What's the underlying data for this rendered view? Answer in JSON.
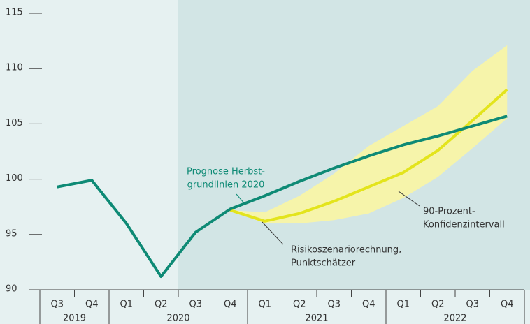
{
  "chart_data": {
    "type": "line",
    "categories": [
      "Q3",
      "Q4",
      "Q1",
      "Q2",
      "Q3",
      "Q4",
      "Q1",
      "Q2",
      "Q3",
      "Q4",
      "Q1",
      "Q2",
      "Q3",
      "Q4"
    ],
    "category_groups": [
      "2019",
      "2019",
      "2020",
      "2020",
      "2020",
      "2020",
      "2021",
      "2021",
      "2021",
      "2021",
      "2022",
      "2022",
      "2022",
      "2022"
    ],
    "series": [
      {
        "color": "#0e8a75",
        "values": [
          99.3,
          99.9,
          96.0,
          91.2,
          95.2,
          97.3,
          98.5,
          99.8,
          101.0,
          102.1,
          103.1,
          103.9,
          104.8,
          105.7
        ]
      },
      {
        "color": "#e3e41c",
        "values": [
          null,
          null,
          null,
          null,
          null,
          97.2,
          96.2,
          96.9,
          98.0,
          99.3,
          100.6,
          102.6,
          105.3,
          108.1
        ]
      }
    ],
    "band": {
      "color": "#f6f4aa",
      "lower": [
        null,
        null,
        null,
        null,
        null,
        97.2,
        96.0,
        96.0,
        96.3,
        96.9,
        98.3,
        100.2,
        102.8,
        105.5
      ],
      "upper": [
        null,
        null,
        null,
        null,
        null,
        97.2,
        97.0,
        98.5,
        100.5,
        103.0,
        104.8,
        106.6,
        109.8,
        112.1
      ]
    },
    "annotations": [
      {
        "lines": [
          "Prognose Herbst-",
          "grundlinien 2020"
        ],
        "color": "#0e8a75"
      },
      {
        "lines": [
          "90-Prozent-",
          "Konfidenzintervall"
        ],
        "color": "#333333"
      },
      {
        "lines": [
          "Risikoszenariorechnung,",
          "Punktschätzer"
        ],
        "color": "#333333"
      }
    ],
    "shade_from": 4,
    "ylim": [
      90,
      115
    ],
    "yticks": [
      90,
      95,
      100,
      105,
      110,
      115
    ]
  }
}
